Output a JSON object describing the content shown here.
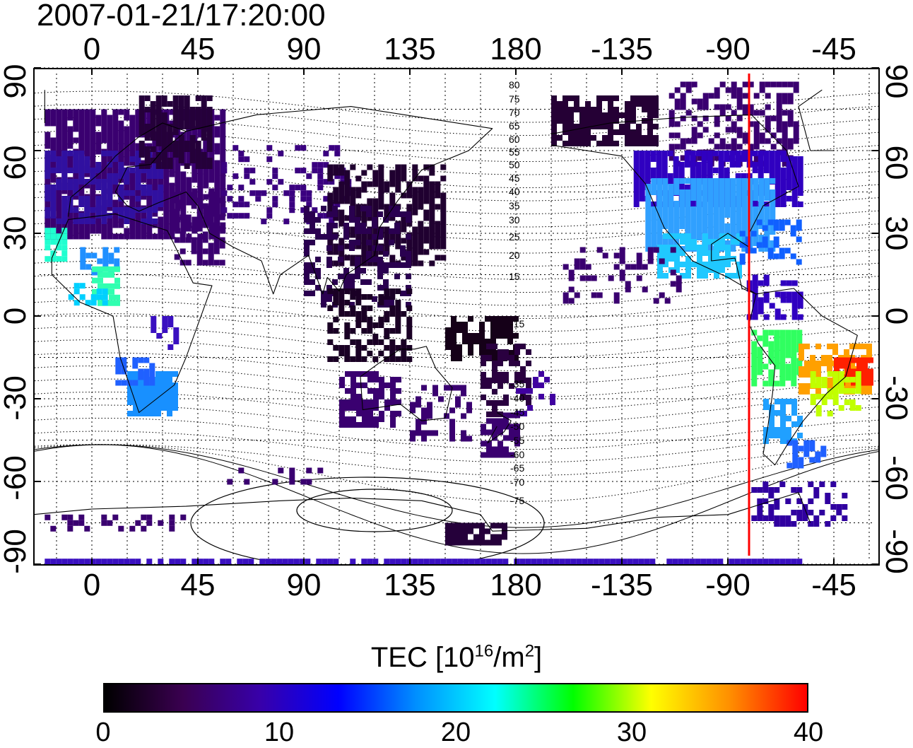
{
  "title": "2007-01-21/17:20:00",
  "x_ticks": [
    "0",
    "45",
    "90",
    "135",
    "180",
    "-135",
    "-90",
    "-45"
  ],
  "y_ticks": [
    "90",
    "60",
    "30",
    "0",
    "-30",
    "-60",
    "-90"
  ],
  "contour_labels_north": [
    "80",
    "75",
    "70",
    "65",
    "60",
    "55",
    "50",
    "45",
    "40",
    "35",
    "30",
    "25",
    "20",
    "15"
  ],
  "contour_labels_south": [
    "-15",
    "-35",
    "-40",
    "-45",
    "-50",
    "-55",
    "-60",
    "-65",
    "-70",
    "-75"
  ],
  "colorbar": {
    "label_main": "TEC  [10",
    "label_exp1": "16",
    "label_mid": "/m",
    "label_exp2": "2",
    "label_end": "]",
    "ticks": [
      "0",
      "10",
      "20",
      "30",
      "40"
    ],
    "min": 0,
    "max": 40,
    "colors": [
      "#000000",
      "#3a0050",
      "#3800aa",
      "#0000ff",
      "#0090ff",
      "#00ffff",
      "#00ff00",
      "#ffff00",
      "#ff9000",
      "#ff0000"
    ]
  },
  "map": {
    "lon_range": [
      -25,
      335
    ],
    "lat_range": [
      -95,
      95
    ],
    "terminator_lon": -80,
    "terminator_color": "#ff0000"
  }
}
